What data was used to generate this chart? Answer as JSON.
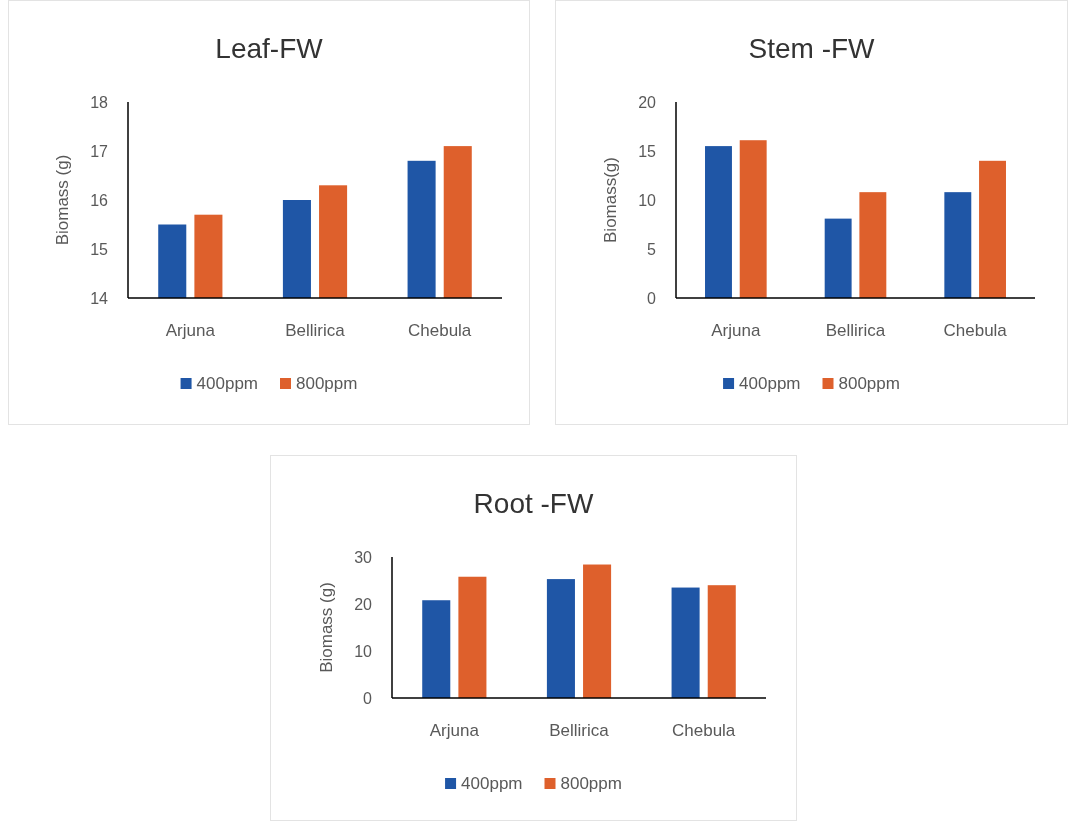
{
  "chart_data": [
    {
      "type": "bar",
      "title": "Leaf-FW",
      "ylabel": "Biomass (g)",
      "categories": [
        "Arjuna",
        "Bellirica",
        "Chebula"
      ],
      "series": [
        {
          "name": "400ppm",
          "color": "#1f56a6",
          "values": [
            15.5,
            16.0,
            16.8
          ]
        },
        {
          "name": "800ppm",
          "color": "#de602c",
          "values": [
            15.7,
            16.3,
            17.1
          ]
        }
      ],
      "ylim": [
        14,
        18
      ],
      "yticks": [
        14,
        15,
        16,
        17,
        18
      ],
      "legend": "bottom"
    },
    {
      "type": "bar",
      "title": "Stem -FW",
      "ylabel": "Biomass(g)",
      "categories": [
        "Arjuna",
        "Bellirica",
        "Chebula"
      ],
      "series": [
        {
          "name": "400ppm",
          "color": "#1f56a6",
          "values": [
            15.5,
            8.1,
            10.8
          ]
        },
        {
          "name": "800ppm",
          "color": "#de602c",
          "values": [
            16.1,
            10.8,
            14.0
          ]
        }
      ],
      "ylim": [
        0,
        20
      ],
      "yticks": [
        0,
        5,
        10,
        15,
        20
      ],
      "legend": "bottom"
    },
    {
      "type": "bar",
      "title": "Root -FW",
      "ylabel": "Biomass (g)",
      "categories": [
        "Arjuna",
        "Bellirica",
        "Chebula"
      ],
      "series": [
        {
          "name": "400ppm",
          "color": "#1f56a6",
          "values": [
            20.8,
            25.3,
            23.5
          ]
        },
        {
          "name": "800ppm",
          "color": "#de602c",
          "values": [
            25.8,
            28.4,
            24.0
          ]
        }
      ],
      "ylim": [
        0,
        30
      ],
      "yticks": [
        0,
        10,
        20,
        30
      ],
      "legend": "bottom"
    }
  ]
}
